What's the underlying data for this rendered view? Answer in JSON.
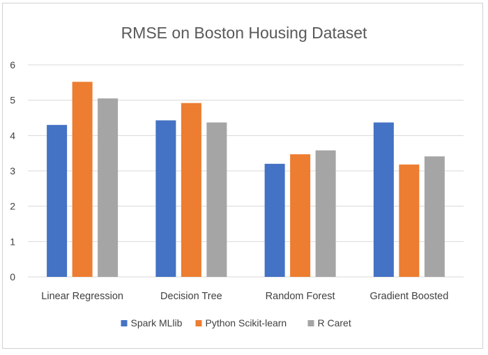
{
  "chart_data": {
    "type": "bar",
    "title": "RMSE on Boston Housing Dataset",
    "xlabel": "",
    "ylabel": "",
    "categories": [
      "Linear Regression",
      "Decision Tree",
      "Random Forest",
      "Gradient Boosted"
    ],
    "series": [
      {
        "name": "Spark MLlib",
        "values": [
          4.3,
          4.43,
          3.2,
          4.37
        ]
      },
      {
        "name": "Python Scikit-learn",
        "values": [
          5.52,
          4.92,
          3.47,
          3.18
        ]
      },
      {
        "name": "R Caret",
        "values": [
          5.05,
          4.37,
          3.58,
          3.41
        ]
      }
    ],
    "ylim": [
      0,
      6
    ],
    "yticks": [
      "0",
      "1",
      "2",
      "3",
      "4",
      "5",
      "6"
    ],
    "grid": true,
    "legend": "bottom",
    "colors": [
      "#4472c4",
      "#ed7d31",
      "#a5a5a5"
    ],
    "grid_color": "#d9d9d9"
  }
}
